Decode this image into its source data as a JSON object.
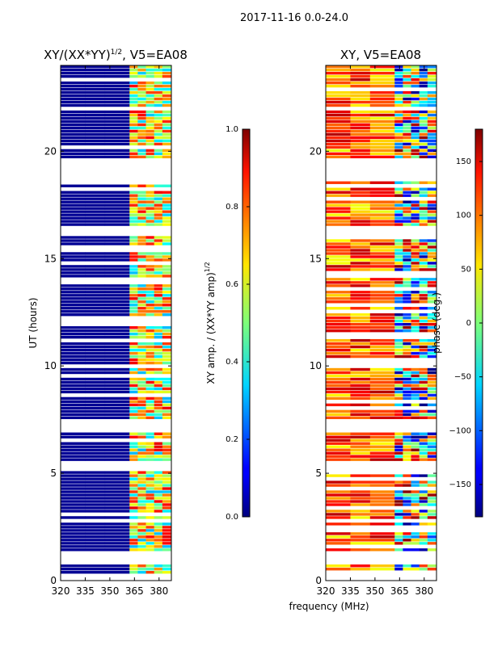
{
  "suptitle": "2017-11-16 0.0-24.0",
  "chart_data": [
    {
      "type": "heatmap",
      "title": "XY/(XX*YY)^1/2, V5=EA08",
      "title_main": "XY/(XX*YY)",
      "title_sup": "1/2",
      "title_tail": ", V5=EA08",
      "xlabel": "",
      "ylabel": "UT (hours)",
      "xlim": [
        320,
        387.5
      ],
      "ylim": [
        0,
        24
      ],
      "xticks": [
        "320",
        "335",
        "350",
        "365",
        "380"
      ],
      "xtick_values": [
        320,
        335,
        350,
        365,
        380
      ],
      "yticks": [
        "0",
        "5",
        "10",
        "15",
        "20"
      ],
      "ytick_values": [
        0,
        5,
        10,
        15,
        20
      ],
      "colormap": "jet",
      "value_description": "mostly ~0.0 below 362 MHz; 0.3-0.9 above 362 MHz",
      "colorbar": {
        "label_main": "XY amp. / (XX*YY amp)",
        "label_sup": "1/2",
        "range": [
          0.0,
          1.0
        ],
        "ticks": [
          "0.0",
          "0.2",
          "0.4",
          "0.6",
          "0.8",
          "1.0"
        ],
        "tick_values": [
          0,
          0.2,
          0.4,
          0.6,
          0.8,
          1.0
        ]
      }
    },
    {
      "type": "heatmap",
      "title": "XY, V5=EA08",
      "xlabel": "frequency (MHz)",
      "ylabel": "",
      "xlim": [
        320,
        387.5
      ],
      "ylim": [
        0,
        24
      ],
      "xticks": [
        "320",
        "335",
        "350",
        "365",
        "380"
      ],
      "xtick_values": [
        320,
        335,
        350,
        365,
        380
      ],
      "yticks": [
        "0",
        "5",
        "10",
        "15",
        "20"
      ],
      "ytick_values": [
        0,
        5,
        10,
        15,
        20
      ],
      "colormap": "jet",
      "value_description": "phase mostly +50 to +150 deg below 362 MHz; mixed -150 to +150 deg above",
      "colorbar": {
        "label": "phase (deg.)",
        "range": [
          -180,
          180
        ],
        "ticks": [
          "−150",
          "−100",
          "−50",
          "0",
          "50",
          "100",
          "150"
        ],
        "tick_values": [
          -150,
          -100,
          -50,
          0,
          50,
          100,
          150
        ]
      }
    }
  ],
  "flagged_intervals_ut": [
    [
      0.05,
      0.2
    ],
    [
      0.7,
      1.3
    ],
    [
      5.0,
      5.4
    ],
    [
      6.9,
      7.5
    ],
    [
      18.5,
      19.6
    ],
    [
      16.0,
      16.5
    ]
  ]
}
